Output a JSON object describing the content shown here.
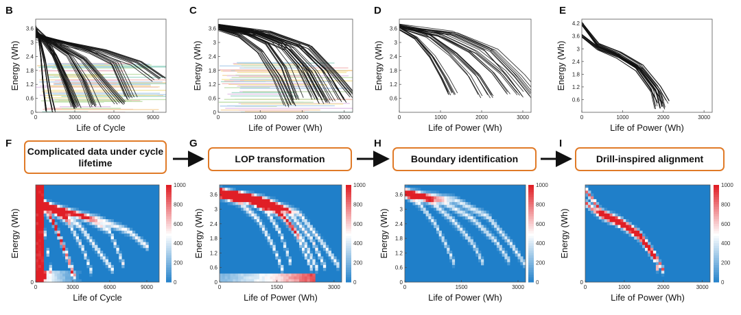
{
  "panels": {
    "B": "B",
    "C": "C",
    "D": "D",
    "E": "E",
    "F": "F",
    "G": "G",
    "H": "H",
    "I": "I"
  },
  "steps": [
    {
      "label": "Complicated data under cycle lifetime"
    },
    {
      "label": "LOP transformation"
    },
    {
      "label": "Boundary identification"
    },
    {
      "label": "Drill-inspired alignment"
    }
  ],
  "colors": {
    "curve": "#111111",
    "box_border": "#e07a27",
    "heat_low": "#1f7fc9",
    "heat_mid": "#ffffff",
    "heat_high": "#e01f26",
    "pastel_bands": [
      "#f4c2c2",
      "#c6e2b3",
      "#f6d7a7",
      "#b9d4ee",
      "#e6c9ec",
      "#f5e6a3",
      "#a9dccd"
    ]
  },
  "chart_data": [
    {
      "panel": "B",
      "type": "line",
      "xlabel": "Life of Cycle",
      "ylabel": "Energy (Wh)",
      "xlim": [
        0,
        10000
      ],
      "ylim": [
        0,
        4.0
      ],
      "xticks": [
        "0",
        "3000",
        "6000",
        "9000"
      ],
      "xtick_values": [
        0,
        3000,
        6000,
        9000
      ],
      "yticks": [
        "0",
        "0.6",
        "1.2",
        "1.8",
        "2.4",
        "3",
        "3.6"
      ],
      "ytick_values": [
        0,
        0.6,
        1.2,
        1.8,
        2.4,
        3,
        3.6
      ],
      "series": [
        {
          "x": [
            0,
            200,
            400,
            600,
            800
          ],
          "y": [
            3.7,
            3.3,
            2.4,
            1.0,
            0.1
          ]
        },
        {
          "x": [
            0,
            300,
            700,
            1100,
            1400
          ],
          "y": [
            3.6,
            3.2,
            2.2,
            0.8,
            0.05
          ]
        },
        {
          "x": [
            0,
            500,
            1500,
            2500,
            3200
          ],
          "y": [
            3.5,
            3.1,
            2.4,
            1.2,
            0.2
          ]
        },
        {
          "x": [
            0,
            1200,
            2600,
            3800,
            4600
          ],
          "y": [
            3.4,
            3.0,
            2.5,
            1.4,
            0.3
          ]
        },
        {
          "x": [
            0,
            2000,
            4200,
            6000,
            7200
          ],
          "y": [
            3.3,
            3.0,
            2.6,
            2.1,
            0.6
          ]
        },
        {
          "x": [
            0,
            2500,
            5000,
            7500,
            9200
          ],
          "y": [
            3.2,
            2.9,
            2.6,
            2.1,
            1.4
          ]
        },
        {
          "x": [
            0,
            1800,
            3600,
            5200,
            6400
          ],
          "y": [
            3.4,
            2.9,
            2.3,
            1.2,
            0.4
          ]
        },
        {
          "x": [
            0,
            900,
            1800,
            2600,
            3000
          ],
          "y": [
            3.6,
            3.1,
            2.0,
            0.9,
            0.3
          ]
        }
      ]
    },
    {
      "panel": "C",
      "type": "line",
      "xlabel": "Life of Power (Wh)",
      "ylabel": "Energy (Wh)",
      "xlim": [
        0,
        3200
      ],
      "ylim": [
        0,
        4.0
      ],
      "xticks": [
        "0",
        "1000",
        "2000",
        "3000"
      ],
      "xtick_values": [
        0,
        1000,
        2000,
        3000
      ],
      "yticks": [
        "0",
        "0.6",
        "1.2",
        "1.8",
        "2.4",
        "3",
        "3.6"
      ],
      "ytick_values": [
        0,
        0.6,
        1.2,
        1.8,
        2.4,
        3,
        3.6
      ],
      "series": [
        {
          "x": [
            0,
            600,
            1200,
            1600,
            1900
          ],
          "y": [
            3.7,
            3.5,
            3.0,
            2.0,
            0.6
          ]
        },
        {
          "x": [
            0,
            800,
            1500,
            2000,
            2400
          ],
          "y": [
            3.7,
            3.5,
            3.0,
            2.0,
            0.6
          ]
        },
        {
          "x": [
            0,
            1000,
            1800,
            2400,
            2800
          ],
          "y": [
            3.7,
            3.4,
            2.9,
            1.8,
            0.5
          ]
        },
        {
          "x": [
            0,
            1200,
            2100,
            2700,
            3100
          ],
          "y": [
            3.7,
            3.4,
            2.8,
            1.6,
            0.7
          ]
        },
        {
          "x": [
            0,
            500,
            1000,
            1400,
            1700
          ],
          "y": [
            3.6,
            3.3,
            2.6,
            1.5,
            0.3
          ]
        },
        {
          "x": [
            0,
            900,
            1700,
            2200,
            2600
          ],
          "y": [
            3.6,
            3.3,
            2.7,
            1.7,
            0.4
          ]
        }
      ]
    },
    {
      "panel": "D",
      "type": "line",
      "xlabel": "Life of Power (Wh)",
      "ylabel": "Energy (Wh)",
      "xlim": [
        0,
        3200
      ],
      "ylim": [
        0,
        4.0
      ],
      "xticks": [
        "0",
        "1000",
        "2000",
        "3000"
      ],
      "xtick_values": [
        0,
        1000,
        2000,
        3000
      ],
      "yticks": [
        "0.6",
        "1.2",
        "1.8",
        "2.4",
        "3",
        "3.6"
      ],
      "ytick_values": [
        0.6,
        1.2,
        1.8,
        2.4,
        3,
        3.6
      ],
      "series": [
        {
          "x": [
            0,
            400,
            800,
            1100,
            1300
          ],
          "y": [
            3.6,
            3.2,
            2.4,
            1.5,
            0.8
          ]
        },
        {
          "x": [
            0,
            700,
            1300,
            1800,
            2100
          ],
          "y": [
            3.7,
            3.3,
            2.5,
            1.6,
            0.7
          ]
        },
        {
          "x": [
            0,
            1000,
            1800,
            2400,
            2800
          ],
          "y": [
            3.7,
            3.3,
            2.6,
            1.7,
            0.8
          ]
        },
        {
          "x": [
            0,
            1300,
            2200,
            2800,
            3200
          ],
          "y": [
            3.7,
            3.4,
            2.7,
            1.6,
            0.7
          ]
        }
      ]
    },
    {
      "panel": "E",
      "type": "line",
      "xlabel": "Life of Power (Wh)",
      "ylabel": "Energy (Wh)",
      "xlim": [
        0,
        3200
      ],
      "ylim": [
        0,
        4.4
      ],
      "xticks": [
        "0",
        "1000",
        "2000",
        "3000"
      ],
      "xtick_values": [
        0,
        1000,
        2000,
        3000
      ],
      "yticks": [
        "0.6",
        "1.2",
        "1.8",
        "2.4",
        "3",
        "3.6",
        "4.2"
      ],
      "ytick_values": [
        0.6,
        1.2,
        1.8,
        2.4,
        3,
        3.6,
        4.2
      ],
      "series": [
        {
          "x": [
            0,
            400,
            900,
            1400,
            1800,
            2000
          ],
          "y": [
            4.2,
            3.2,
            2.8,
            2.2,
            1.2,
            0.5
          ]
        },
        {
          "x": [
            0,
            400,
            900,
            1400,
            1800,
            1900
          ],
          "y": [
            3.6,
            3.0,
            2.6,
            2.0,
            1.0,
            0.2
          ]
        }
      ]
    },
    {
      "panel": "F",
      "type": "heatmap",
      "xlabel": "Life of Cycle",
      "ylabel": "Energy (Wh)",
      "xlim": [
        0,
        10000
      ],
      "ylim": [
        0,
        4.0
      ],
      "xticks": [
        "0",
        "3000",
        "6000",
        "9000"
      ],
      "xtick_values": [
        0,
        3000,
        6000,
        9000
      ],
      "yticks": [
        "0"
      ],
      "ytick_values": [
        0
      ],
      "colorbar": {
        "range": [
          0,
          1000
        ],
        "ticks": [
          "0",
          "200",
          "400",
          "600",
          "800",
          "1000"
        ]
      }
    },
    {
      "panel": "G",
      "type": "heatmap",
      "xlabel": "Life of Power (Wh)",
      "ylabel": "Energy (Wh)",
      "xlim": [
        0,
        3200
      ],
      "ylim": [
        0,
        4.0
      ],
      "xticks": [
        "0",
        "1500",
        "3000"
      ],
      "xtick_values": [
        0,
        1500,
        3000
      ],
      "yticks": [
        "0",
        "0.6",
        "1.2",
        "1.8",
        "2.4",
        "3",
        "3.6"
      ],
      "ytick_values": [
        0,
        0.6,
        1.2,
        1.8,
        2.4,
        3,
        3.6
      ],
      "colorbar": {
        "range": [
          0,
          1000
        ],
        "ticks": [
          "0",
          "200",
          "400",
          "600",
          "800",
          "1000"
        ]
      }
    },
    {
      "panel": "H",
      "type": "heatmap",
      "xlabel": "Life of Power (Wh)",
      "ylabel": "Energy (Wh)",
      "xlim": [
        0,
        3200
      ],
      "ylim": [
        0,
        4.0
      ],
      "xticks": [
        "0",
        "1500",
        "3000"
      ],
      "xtick_values": [
        0,
        1500,
        3000
      ],
      "yticks": [
        "0",
        "0.6",
        "1.2",
        "1.8",
        "2.4",
        "3",
        "3.6"
      ],
      "ytick_values": [
        0,
        0.6,
        1.2,
        1.8,
        2.4,
        3,
        3.6
      ],
      "colorbar": {
        "range": [
          0,
          1000
        ],
        "ticks": [
          "0",
          "200",
          "400",
          "600",
          "800",
          "1000"
        ]
      }
    },
    {
      "panel": "I",
      "type": "heatmap",
      "xlabel": "Life of Power (Wh)",
      "ylabel": "Energy (Wh)",
      "xlim": [
        0,
        3200
      ],
      "ylim": [
        0,
        4.4
      ],
      "xticks": [
        "0",
        "1000",
        "2000",
        "3000"
      ],
      "xtick_values": [
        0,
        1000,
        2000,
        3000
      ],
      "yticks": [
        "0"
      ],
      "ytick_values": [
        0
      ],
      "colorbar": {
        "range": [
          0,
          1000
        ],
        "ticks": [
          "0",
          "200",
          "400",
          "600",
          "800",
          "1000"
        ]
      }
    }
  ]
}
